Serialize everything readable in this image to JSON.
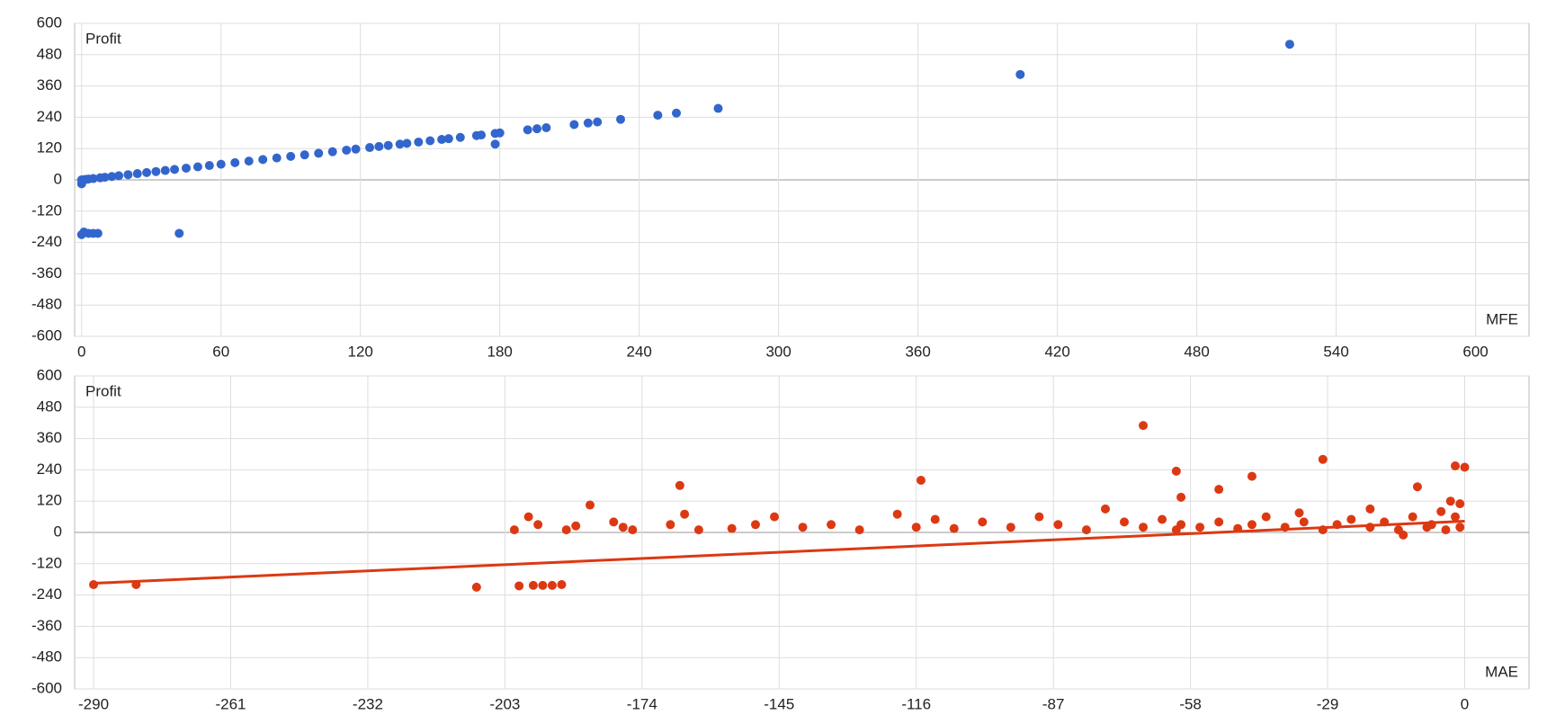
{
  "chart_data": [
    {
      "type": "scatter",
      "y_label": "Profit",
      "x_label": "MFE",
      "xlim": [
        -3,
        623
      ],
      "ylim": [
        -600,
        600
      ],
      "xticks": [
        0,
        60,
        120,
        180,
        240,
        300,
        360,
        420,
        480,
        540,
        600
      ],
      "yticks": [
        -600,
        -480,
        -360,
        -240,
        -120,
        0,
        120,
        240,
        360,
        480,
        600
      ],
      "grid": true,
      "series": [
        {
          "color": "#3366cc",
          "x": [
            0,
            0,
            1,
            2,
            3,
            5,
            8,
            10,
            13,
            16,
            20,
            24,
            28,
            32,
            36,
            40,
            45,
            50,
            55,
            60,
            66,
            72,
            78,
            84,
            90,
            96,
            102,
            108,
            114,
            118,
            124,
            128,
            132,
            137,
            140,
            145,
            150,
            155,
            158,
            163,
            170,
            172,
            178,
            180,
            178,
            192,
            196,
            200,
            212,
            218,
            222,
            232,
            248,
            256,
            274,
            404,
            520,
            0,
            1,
            3,
            5,
            7,
            42
          ],
          "values": [
            -15,
            0,
            1,
            2,
            3,
            5,
            8,
            10,
            13,
            16,
            20,
            24,
            28,
            32,
            36,
            40,
            45,
            50,
            55,
            60,
            66,
            72,
            78,
            84,
            90,
            96,
            102,
            108,
            114,
            118,
            124,
            128,
            132,
            137,
            140,
            145,
            150,
            155,
            158,
            163,
            170,
            172,
            178,
            180,
            137,
            192,
            196,
            200,
            212,
            218,
            222,
            232,
            248,
            256,
            274,
            404,
            520,
            -210,
            -200,
            -205,
            -205,
            -205,
            -205
          ]
        }
      ]
    },
    {
      "type": "scatter",
      "y_label": "Profit",
      "x_label": "MAE",
      "xlim": [
        -294,
        13.6
      ],
      "ylim": [
        -600,
        600
      ],
      "xticks": [
        -290,
        -261,
        -232,
        -203,
        -174,
        -145,
        -116,
        -87,
        -58,
        -29,
        0
      ],
      "yticks": [
        -600,
        -480,
        -360,
        -240,
        -120,
        0,
        120,
        240,
        360,
        480,
        600
      ],
      "grid": true,
      "series": [
        {
          "color": "#dc3912",
          "x": [
            -290,
            -281,
            -209,
            -200,
            -197,
            -195,
            -193,
            -191,
            -201,
            -198,
            -196,
            -190,
            -188,
            -178,
            -180,
            -176,
            -168,
            -165,
            -162,
            -155,
            -150,
            -146,
            -140,
            -134,
            -128,
            -120,
            -116,
            -112,
            -108,
            -102,
            -96,
            -90,
            -86,
            -80,
            -76,
            -72,
            -68,
            -64,
            -61,
            -60,
            -56,
            -52,
            -48,
            -45,
            -42,
            -38,
            -34,
            -30,
            -27,
            -24,
            -20,
            -17,
            -14,
            -11,
            -8,
            -7,
            -5,
            -4,
            -3,
            -2,
            -2,
            -1,
            -1,
            0,
            -166,
            -185,
            -115,
            -68,
            -61,
            -30,
            -45,
            -52,
            -60,
            -13,
            -20,
            -10,
            -35
          ],
          "values": [
            -200,
            -200,
            -210,
            -205,
            -203,
            -203,
            -203,
            -200,
            10,
            60,
            30,
            10,
            25,
            20,
            40,
            10,
            30,
            70,
            10,
            15,
            30,
            60,
            20,
            30,
            10,
            70,
            20,
            50,
            15,
            40,
            20,
            60,
            30,
            10,
            90,
            40,
            20,
            50,
            10,
            30,
            20,
            40,
            15,
            30,
            60,
            20,
            40,
            10,
            30,
            50,
            20,
            40,
            10,
            60,
            20,
            30,
            80,
            10,
            120,
            60,
            255,
            20,
            110,
            250,
            180,
            105,
            200,
            410,
            235,
            280,
            215,
            165,
            135,
            -10,
            90,
            175,
            75
          ]
        },
        {
          "color": "#dc3912",
          "line": true,
          "x": [
            -290,
            0
          ],
          "values": [
            -195,
            43
          ]
        }
      ]
    }
  ]
}
